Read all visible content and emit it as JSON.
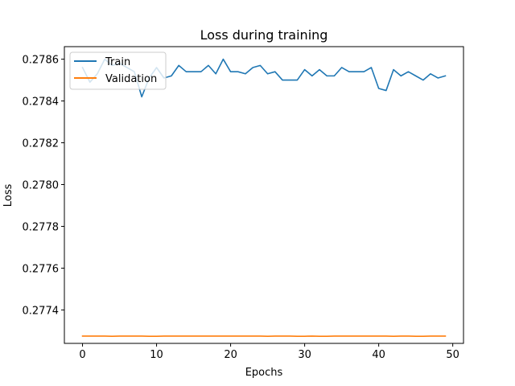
{
  "chart_data": {
    "type": "line",
    "title": "Loss during training",
    "xlabel": "Epochs",
    "ylabel": "Loss",
    "xlim": [
      -2.45,
      51.45
    ],
    "ylim": [
      0.27724,
      0.27866
    ],
    "xticks": [
      0,
      10,
      20,
      30,
      40,
      50
    ],
    "xtick_labels": [
      "0",
      "10",
      "20",
      "30",
      "40",
      "50"
    ],
    "yticks": [
      0.2774,
      0.2776,
      0.2778,
      0.278,
      0.2782,
      0.2784,
      0.2786
    ],
    "ytick_labels": [
      "0.2774",
      "0.2776",
      "0.2778",
      "0.2780",
      "0.2782",
      "0.2784",
      "0.2786"
    ],
    "grid": false,
    "legend_position": "upper left",
    "x": [
      0,
      1,
      2,
      3,
      4,
      5,
      6,
      7,
      8,
      9,
      10,
      11,
      12,
      13,
      14,
      15,
      16,
      17,
      18,
      19,
      20,
      21,
      22,
      23,
      24,
      25,
      26,
      27,
      28,
      29,
      30,
      31,
      32,
      33,
      34,
      35,
      36,
      37,
      38,
      39,
      40,
      41,
      42,
      43,
      44,
      45,
      46,
      47,
      48,
      49
    ],
    "series": [
      {
        "name": "Train",
        "color": "#1f77b4",
        "values": [
          0.27856,
          0.27849,
          0.27853,
          0.2786,
          0.27857,
          0.27858,
          0.27856,
          0.27854,
          0.27842,
          0.27851,
          0.27856,
          0.27851,
          0.27852,
          0.27857,
          0.27854,
          0.27854,
          0.27854,
          0.27857,
          0.27853,
          0.2786,
          0.27854,
          0.27854,
          0.27853,
          0.27856,
          0.27857,
          0.27853,
          0.27854,
          0.2785,
          0.2785,
          0.2785,
          0.27855,
          0.27852,
          0.27855,
          0.27852,
          0.27852,
          0.27856,
          0.27854,
          0.27854,
          0.27854,
          0.27856,
          0.27846,
          0.27845,
          0.27855,
          0.27852,
          0.27854,
          0.27852,
          0.2785,
          0.27853,
          0.27851,
          0.27852
        ]
      },
      {
        "name": "Validation",
        "color": "#ff7f0e",
        "values": [
          0.277275,
          0.277275,
          0.277275,
          0.277275,
          0.277274,
          0.277275,
          0.277275,
          0.277275,
          0.277275,
          0.277274,
          0.277274,
          0.277275,
          0.277275,
          0.277275,
          0.277275,
          0.277275,
          0.277275,
          0.277275,
          0.277275,
          0.277275,
          0.277275,
          0.277275,
          0.277275,
          0.277275,
          0.277275,
          0.277274,
          0.277275,
          0.277275,
          0.277275,
          0.277274,
          0.277274,
          0.277275,
          0.277274,
          0.277274,
          0.277275,
          0.277275,
          0.277275,
          0.277275,
          0.277275,
          0.277275,
          0.277275,
          0.277275,
          0.277274,
          0.277275,
          0.277275,
          0.277274,
          0.277274,
          0.277275,
          0.277275,
          0.277275
        ]
      }
    ]
  }
}
